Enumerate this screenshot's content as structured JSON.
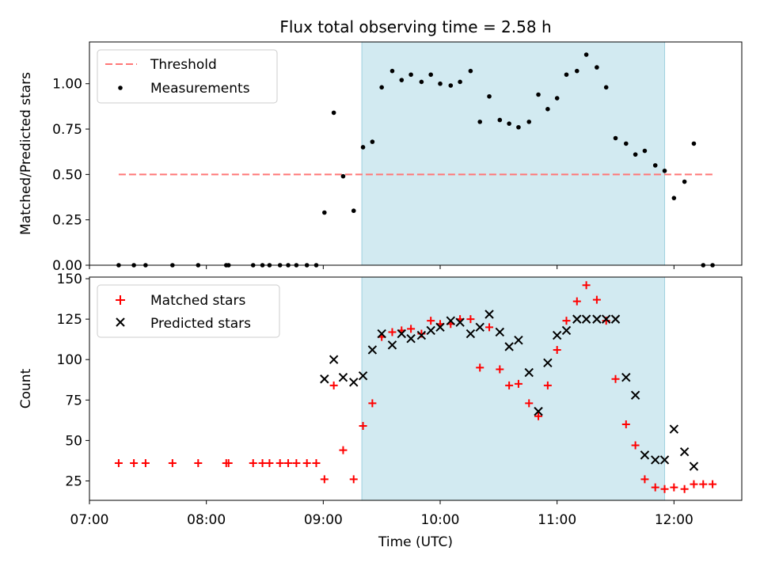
{
  "chart_data": {
    "title": "Flux total observing time = 2.58 h",
    "xlabel": "Time (UTC)",
    "x_ticks": [
      "07:00",
      "08:00",
      "09:00",
      "10:00",
      "11:00",
      "12:00"
    ],
    "x_tick_hours": [
      7,
      8,
      9,
      10,
      11,
      12
    ],
    "x_range_hours": [
      7.0,
      12.58
    ],
    "shaded_band_hours": [
      9.33,
      11.92
    ],
    "shade_color": "#add8e6",
    "panels": [
      {
        "type": "scatter",
        "ylabel": "Matched/Predicted stars",
        "ylim": [
          0,
          1.23
        ],
        "y_ticks": [
          "0.00",
          "0.25",
          "0.50",
          "0.75",
          "1.00"
        ],
        "y_tick_values": [
          0,
          0.25,
          0.5,
          0.75,
          1.0
        ],
        "legend_position": "upper-left",
        "threshold": {
          "name": "Threshold",
          "value": 0.5,
          "x_from": 7.25,
          "x_to": 12.33,
          "color": "#ff7777"
        },
        "series": [
          {
            "name": "Measurements",
            "color": "#000000",
            "x": [
              7.25,
              7.38,
              7.48,
              7.71,
              7.93,
              8.17,
              8.19,
              8.4,
              8.48,
              8.54,
              8.63,
              8.7,
              8.77,
              8.86,
              8.94,
              9.01,
              9.09,
              9.17,
              9.26,
              9.34,
              9.42,
              9.5,
              9.59,
              9.67,
              9.75,
              9.84,
              9.92,
              10.0,
              10.09,
              10.17,
              10.26,
              10.34,
              10.42,
              10.51,
              10.59,
              10.67,
              10.76,
              10.84,
              10.92,
              11.0,
              11.08,
              11.17,
              11.25,
              11.34,
              11.42,
              11.5,
              11.59,
              11.67,
              11.75,
              11.84,
              11.92,
              12.0,
              12.09,
              12.17,
              12.25,
              12.33
            ],
            "y": [
              0,
              0,
              0,
              0,
              0,
              0,
              0,
              0,
              0,
              0,
              0,
              0,
              0,
              0,
              0,
              0.29,
              0.84,
              0.49,
              0.3,
              0.65,
              0.68,
              0.98,
              1.07,
              1.02,
              1.05,
              1.01,
              1.05,
              1.0,
              0.99,
              1.01,
              1.07,
              0.79,
              0.93,
              0.8,
              0.78,
              0.76,
              0.79,
              0.94,
              0.86,
              0.92,
              1.05,
              1.07,
              1.16,
              1.09,
              0.98,
              0.7,
              0.67,
              0.61,
              0.63,
              0.55,
              0.52,
              0.37,
              0.46,
              0.67,
              0,
              0
            ]
          }
        ]
      },
      {
        "type": "scatter",
        "ylabel": "Count",
        "ylim": [
          13,
          151
        ],
        "y_ticks": [
          "25",
          "50",
          "75",
          "100",
          "125",
          "150"
        ],
        "y_tick_values": [
          25,
          50,
          75,
          100,
          125,
          150
        ],
        "legend_position": "upper-left",
        "series": [
          {
            "name": "Matched stars",
            "marker": "plus",
            "color": "#ff0000",
            "x": [
              7.25,
              7.38,
              7.48,
              7.71,
              7.93,
              8.17,
              8.19,
              8.4,
              8.48,
              8.54,
              8.63,
              8.7,
              8.77,
              8.86,
              8.94,
              9.01,
              9.09,
              9.17,
              9.26,
              9.34,
              9.42,
              9.5,
              9.59,
              9.67,
              9.75,
              9.84,
              9.92,
              10.0,
              10.09,
              10.17,
              10.26,
              10.34,
              10.42,
              10.51,
              10.59,
              10.67,
              10.76,
              10.84,
              10.92,
              11.0,
              11.08,
              11.17,
              11.25,
              11.34,
              11.42,
              11.5,
              11.59,
              11.67,
              11.75,
              11.84,
              11.92,
              12.0,
              12.09,
              12.17,
              12.25,
              12.33
            ],
            "y": [
              36,
              36,
              36,
              36,
              36,
              36,
              36,
              36,
              36,
              36,
              36,
              36,
              36,
              36,
              36,
              26,
              84,
              44,
              26,
              59,
              73,
              114,
              117,
              118,
              119,
              116,
              124,
              122,
              122,
              125,
              125,
              95,
              120,
              94,
              84,
              85,
              73,
              65,
              84,
              106,
              124,
              136,
              146,
              137,
              124,
              88,
              60,
              47,
              26,
              21,
              20,
              21,
              20,
              23,
              23,
              23
            ]
          },
          {
            "name": "Predicted stars",
            "marker": "x",
            "color": "#000000",
            "x": [
              9.01,
              9.09,
              9.17,
              9.26,
              9.34,
              9.42,
              9.5,
              9.59,
              9.67,
              9.75,
              9.84,
              9.92,
              10.0,
              10.09,
              10.17,
              10.26,
              10.34,
              10.42,
              10.51,
              10.59,
              10.67,
              10.76,
              10.84,
              10.92,
              11.0,
              11.08,
              11.17,
              11.25,
              11.34,
              11.42,
              11.5,
              11.59,
              11.67,
              11.75,
              11.84,
              11.92,
              12.0,
              12.09,
              12.17
            ],
            "y": [
              88,
              100,
              89,
              86,
              90,
              106,
              116,
              109,
              116,
              113,
              115,
              118,
              120,
              124,
              123,
              116,
              120,
              128,
              117,
              108,
              112,
              92,
              68,
              98,
              115,
              118,
              125,
              125,
              125,
              125,
              125,
              89,
              78,
              41,
              38,
              38,
              57,
              43,
              34
            ]
          }
        ]
      }
    ]
  }
}
